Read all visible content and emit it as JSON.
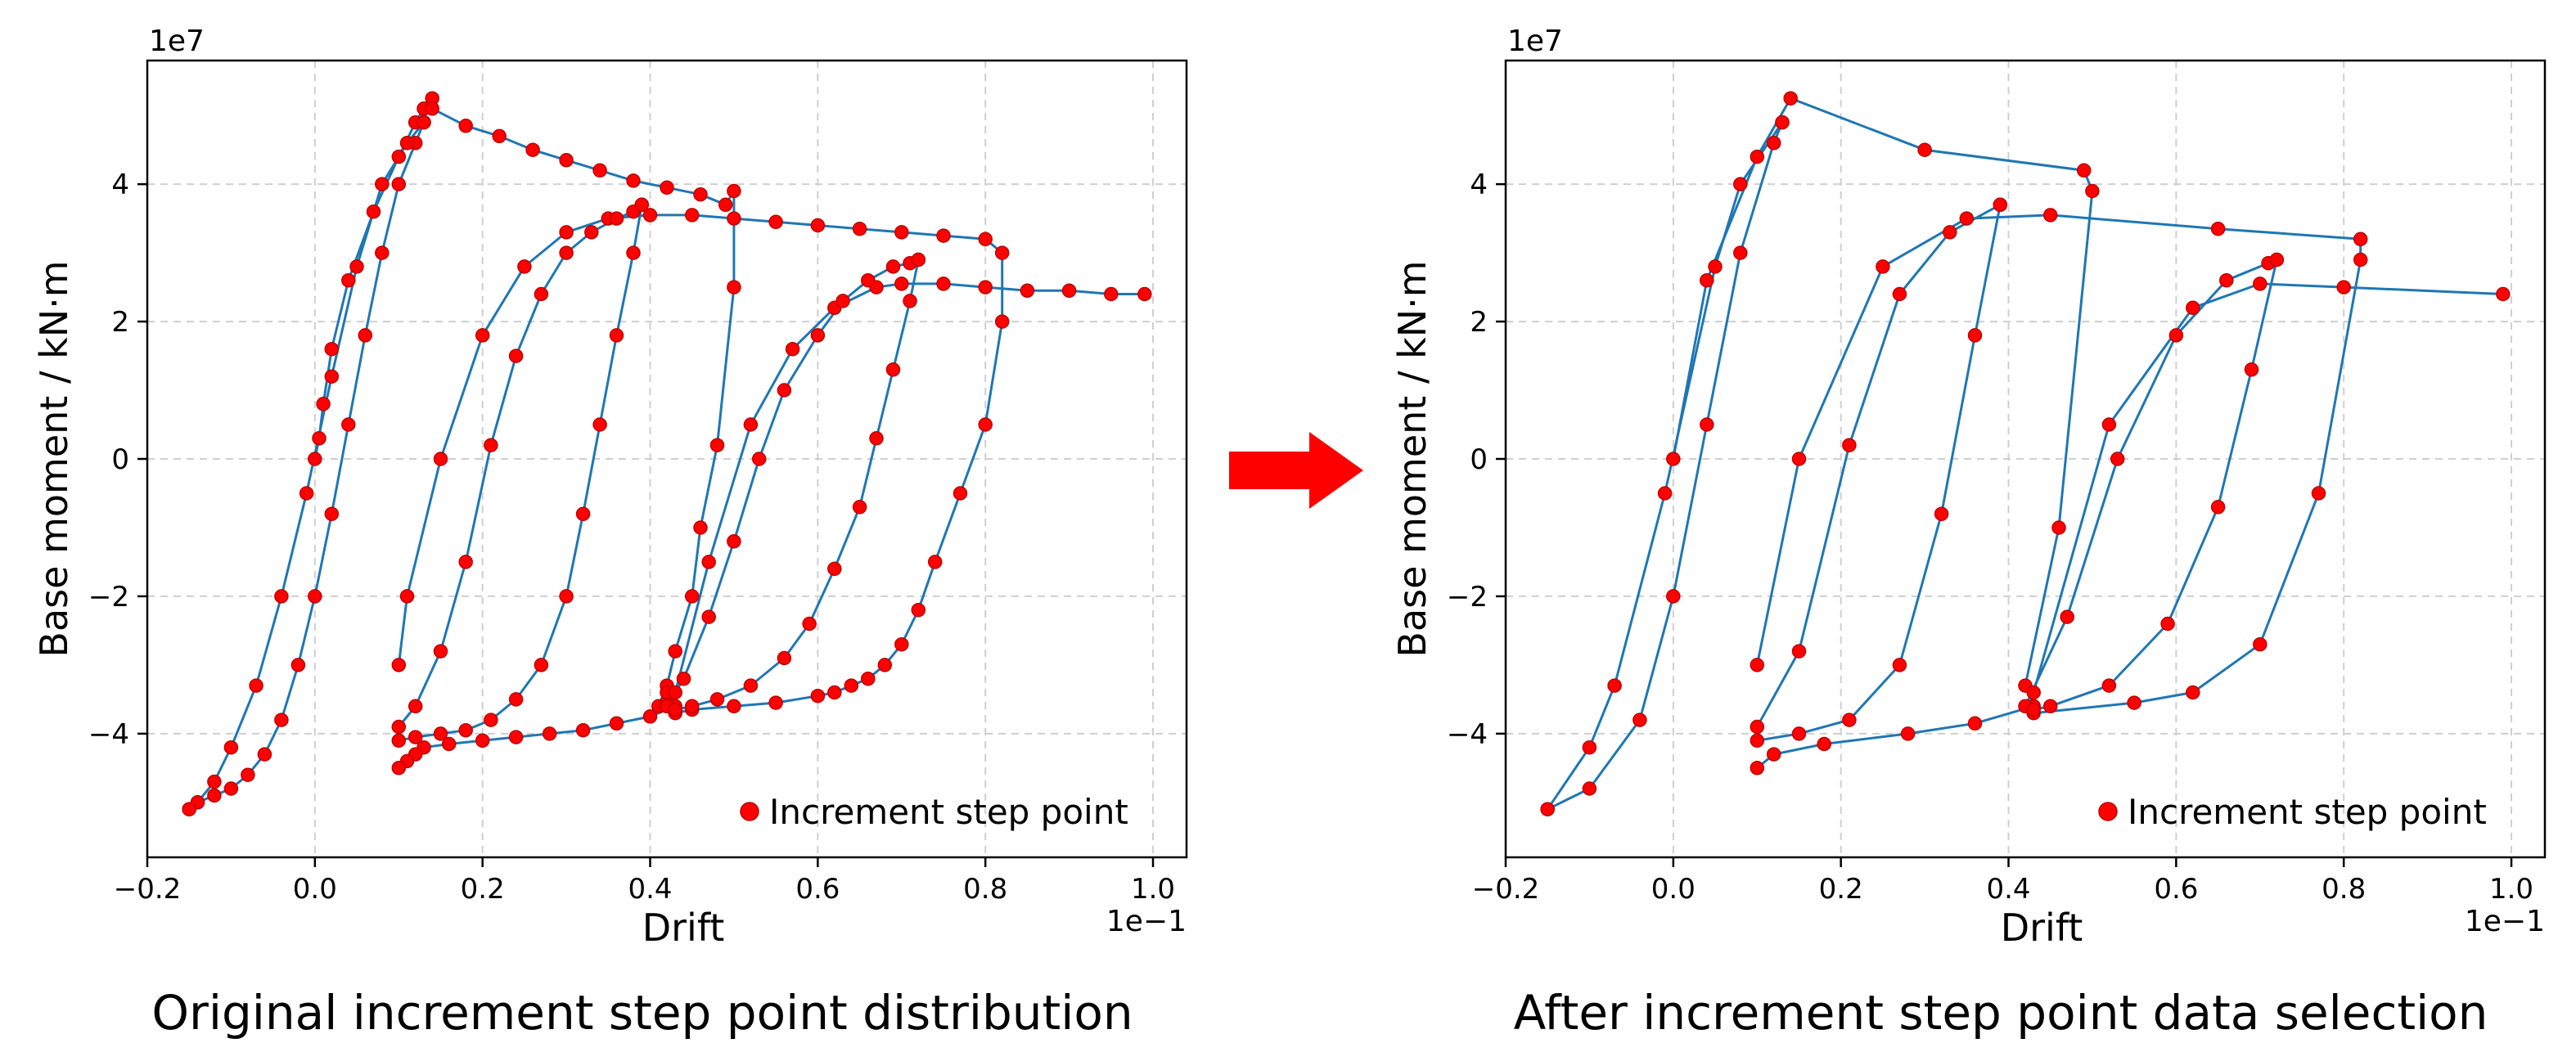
{
  "arrow_color": "#ff0000",
  "chart_data": [
    {
      "type": "line",
      "caption": "Original increment step point distribution",
      "xlabel": "Drift",
      "ylabel": "Base moment / kN·m",
      "x_multiplier": "1e−1",
      "y_multiplier": "1e7",
      "xlim": [
        -0.2,
        1.04
      ],
      "ylim": [
        -5.8,
        5.8
      ],
      "xticks": [
        -0.2,
        0.0,
        0.2,
        0.4,
        0.6,
        0.8,
        1.0
      ],
      "xtick_labels": [
        "−0.2",
        "0.0",
        "0.2",
        "0.4",
        "0.6",
        "0.8",
        "1.0"
      ],
      "yticks": [
        -4,
        -2,
        0,
        2,
        4
      ],
      "ytick_labels": [
        "−4",
        "−2",
        "0",
        "2",
        "4"
      ],
      "grid": true,
      "legend": {
        "label": "Increment step point",
        "placement": "lower-right"
      },
      "line_color": "#1f77b4",
      "marker_color": "#ff0000",
      "series": [
        {
          "x": [
            0.0,
            0.005,
            0.01,
            0.02,
            0.04,
            0.07,
            0.1,
            0.12,
            0.13,
            0.14,
            0.14,
            0.18,
            0.22,
            0.26,
            0.3,
            0.34,
            0.38,
            0.42,
            0.46,
            0.49,
            0.5,
            0.5,
            0.48,
            0.46,
            0.45,
            0.43,
            0.42,
            0.41,
            0.42,
            0.42,
            0.43,
            0.4,
            0.36,
            0.32,
            0.28,
            0.24,
            0.2,
            0.16,
            0.13,
            0.12,
            0.11,
            0.1
          ],
          "y": [
            0.0,
            0.3,
            0.8,
            1.6,
            2.6,
            3.6,
            4.4,
            4.9,
            5.1,
            5.25,
            5.1,
            4.85,
            4.7,
            4.5,
            4.35,
            4.2,
            4.05,
            3.95,
            3.85,
            3.7,
            3.9,
            2.5,
            0.2,
            -1.0,
            -2.0,
            -2.8,
            -3.3,
            -3.6,
            -3.55,
            -3.4,
            -3.6,
            -3.75,
            -3.85,
            -3.95,
            -4.0,
            -4.05,
            -4.1,
            -4.15,
            -4.2,
            -4.3,
            -4.4,
            -4.5
          ]
        },
        {
          "x": [
            0.1,
            0.11,
            0.15,
            0.2,
            0.25,
            0.3,
            0.35,
            0.4,
            0.45,
            0.5,
            0.55,
            0.6,
            0.65,
            0.7,
            0.75,
            0.8,
            0.82,
            0.82,
            0.8,
            0.77,
            0.74,
            0.72,
            0.7,
            0.68,
            0.66,
            0.64,
            0.62,
            0.6,
            0.55,
            0.5,
            0.45,
            0.43
          ],
          "y": [
            -3.0,
            -2.0,
            0.0,
            1.8,
            2.8,
            3.3,
            3.5,
            3.55,
            3.55,
            3.5,
            3.45,
            3.4,
            3.35,
            3.3,
            3.25,
            3.2,
            3.0,
            2.0,
            0.5,
            -0.5,
            -1.5,
            -2.2,
            -2.7,
            -3.0,
            -3.2,
            -3.3,
            -3.4,
            -3.45,
            -3.55,
            -3.6,
            -3.65,
            -3.7
          ]
        },
        {
          "x": [
            0.43,
            0.47,
            0.52,
            0.57,
            0.62,
            0.67,
            0.7,
            0.75,
            0.8,
            0.85,
            0.9,
            0.95,
            0.99
          ],
          "y": [
            -3.4,
            -1.5,
            0.5,
            1.6,
            2.2,
            2.5,
            2.55,
            2.55,
            2.5,
            2.45,
            2.45,
            2.4,
            2.4
          ]
        },
        {
          "x": [
            -0.15,
            -0.14,
            -0.12,
            -0.1,
            -0.08,
            -0.06,
            -0.04,
            -0.02,
            0.0,
            0.02,
            0.04,
            0.06,
            0.08,
            0.1,
            0.12,
            0.13
          ],
          "y": [
            -5.1,
            -5.0,
            -4.9,
            -4.8,
            -4.6,
            -4.3,
            -3.8,
            -3.0,
            -2.0,
            -0.8,
            0.5,
            1.8,
            3.0,
            4.0,
            4.6,
            4.9
          ]
        },
        {
          "x": [
            0.13,
            0.11,
            0.08,
            0.05,
            0.02,
            -0.01,
            -0.04,
            -0.07,
            -0.1,
            -0.12,
            -0.14,
            -0.15
          ],
          "y": [
            4.9,
            4.6,
            4.0,
            2.8,
            1.2,
            -0.5,
            -2.0,
            -3.3,
            -4.2,
            -4.7,
            -5.0,
            -5.1
          ]
        },
        {
          "x": [
            0.1,
            0.12,
            0.15,
            0.18,
            0.21,
            0.24,
            0.27,
            0.3,
            0.33,
            0.36,
            0.38,
            0.39
          ],
          "y": [
            -3.9,
            -3.6,
            -2.8,
            -1.5,
            0.2,
            1.5,
            2.4,
            3.0,
            3.3,
            3.5,
            3.6,
            3.7
          ]
        },
        {
          "x": [
            0.39,
            0.38,
            0.36,
            0.34,
            0.32,
            0.3,
            0.27,
            0.24,
            0.21,
            0.18,
            0.15,
            0.12,
            0.1
          ],
          "y": [
            3.7,
            3.0,
            1.8,
            0.5,
            -0.8,
            -2.0,
            -3.0,
            -3.5,
            -3.8,
            -3.95,
            -4.0,
            -4.05,
            -4.1
          ]
        },
        {
          "x": [
            0.42,
            0.44,
            0.47,
            0.5,
            0.53,
            0.56,
            0.6,
            0.63,
            0.66,
            0.69,
            0.71,
            0.72
          ],
          "y": [
            -3.6,
            -3.2,
            -2.3,
            -1.2,
            0.0,
            1.0,
            1.8,
            2.3,
            2.6,
            2.8,
            2.85,
            2.9
          ]
        },
        {
          "x": [
            0.72,
            0.71,
            0.69,
            0.67,
            0.65,
            0.62,
            0.59,
            0.56,
            0.52,
            0.48,
            0.45,
            0.43
          ],
          "y": [
            2.9,
            2.3,
            1.3,
            0.3,
            -0.7,
            -1.6,
            -2.4,
            -2.9,
            -3.3,
            -3.5,
            -3.6,
            -3.65
          ]
        }
      ]
    },
    {
      "type": "line",
      "caption": "After increment step point data selection",
      "xlabel": "Drift",
      "ylabel": "Base moment / kN·m",
      "x_multiplier": "1e−1",
      "y_multiplier": "1e7",
      "xlim": [
        -0.2,
        1.04
      ],
      "ylim": [
        -5.8,
        5.8
      ],
      "xticks": [
        -0.2,
        0.0,
        0.2,
        0.4,
        0.6,
        0.8,
        1.0
      ],
      "xtick_labels": [
        "−0.2",
        "0.0",
        "0.2",
        "0.4",
        "0.6",
        "0.8",
        "1.0"
      ],
      "yticks": [
        -4,
        -2,
        0,
        2,
        4
      ],
      "ytick_labels": [
        "−4",
        "−2",
        "0",
        "2",
        "4"
      ],
      "grid": true,
      "legend": {
        "label": "Increment step point",
        "placement": "lower-right"
      },
      "line_color": "#1f77b4",
      "marker_color": "#ff0000",
      "series": [
        {
          "x": [
            0.0,
            0.04,
            0.1,
            0.14,
            0.3,
            0.49,
            0.5,
            0.46,
            0.42,
            0.43,
            0.36,
            0.28,
            0.18,
            0.12,
            0.1
          ],
          "y": [
            0.0,
            2.6,
            4.4,
            5.25,
            4.5,
            4.2,
            3.9,
            -1.0,
            -3.3,
            -3.6,
            -3.85,
            -4.0,
            -4.15,
            -4.3,
            -4.5
          ]
        },
        {
          "x": [
            0.1,
            0.15,
            0.25,
            0.35,
            0.45,
            0.65,
            0.82,
            0.82,
            0.77,
            0.7,
            0.62,
            0.55,
            0.43
          ],
          "y": [
            -3.0,
            0.0,
            2.8,
            3.5,
            3.55,
            3.35,
            3.2,
            2.9,
            -0.5,
            -2.7,
            -3.4,
            -3.55,
            -3.7
          ]
        },
        {
          "x": [
            0.43,
            0.52,
            0.62,
            0.7,
            0.8,
            0.99
          ],
          "y": [
            -3.4,
            0.5,
            2.2,
            2.55,
            2.5,
            2.4
          ]
        },
        {
          "x": [
            -0.15,
            -0.1,
            -0.04,
            0.0,
            0.04,
            0.08,
            0.12,
            0.13
          ],
          "y": [
            -5.1,
            -4.8,
            -3.8,
            -2.0,
            0.5,
            3.0,
            4.6,
            4.9
          ]
        },
        {
          "x": [
            0.13,
            0.08,
            0.05,
            -0.01,
            -0.07,
            -0.1,
            -0.15
          ],
          "y": [
            4.9,
            4.0,
            2.8,
            -0.5,
            -3.3,
            -4.2,
            -5.1
          ]
        },
        {
          "x": [
            0.1,
            0.15,
            0.21,
            0.27,
            0.33,
            0.39
          ],
          "y": [
            -3.9,
            -2.8,
            0.2,
            2.4,
            3.3,
            3.7
          ]
        },
        {
          "x": [
            0.39,
            0.36,
            0.32,
            0.27,
            0.21,
            0.15,
            0.1
          ],
          "y": [
            3.7,
            1.8,
            -0.8,
            -3.0,
            -3.8,
            -4.0,
            -4.1
          ]
        },
        {
          "x": [
            0.42,
            0.47,
            0.53,
            0.6,
            0.66,
            0.71,
            0.72
          ],
          "y": [
            -3.6,
            -2.3,
            0.0,
            1.8,
            2.6,
            2.85,
            2.9
          ]
        },
        {
          "x": [
            0.72,
            0.69,
            0.65,
            0.59,
            0.52,
            0.45,
            0.43
          ],
          "y": [
            2.9,
            1.3,
            -0.7,
            -2.4,
            -3.3,
            -3.6,
            -3.65
          ]
        }
      ]
    }
  ]
}
